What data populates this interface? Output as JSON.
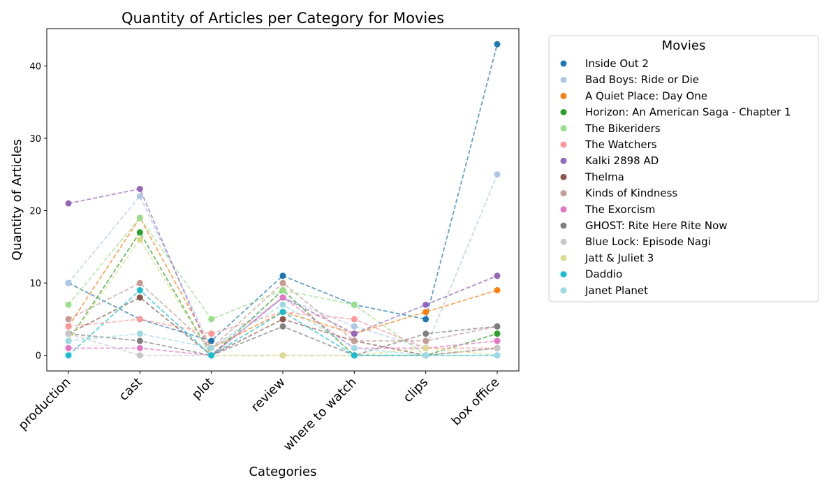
{
  "chart_data": {
    "type": "line",
    "title": "Quantity of Articles per Category for Movies",
    "xlabel": "Categories",
    "ylabel": "Quantity of Articles",
    "categories": [
      "production",
      "cast",
      "plot",
      "review",
      "where to watch",
      "clips",
      "box office"
    ],
    "ylim": [
      -2.15,
      45.15
    ],
    "yticks": [
      0,
      10,
      20,
      30,
      40
    ],
    "grid": false,
    "line_style": "dashed",
    "legend": {
      "title": "Movies",
      "placement": "outside-right"
    },
    "series": [
      {
        "name": "Inside Out 2",
        "color": "#1f77b4",
        "values": [
          10,
          5,
          2,
          11,
          7,
          5,
          43
        ]
      },
      {
        "name": "Bad Boys: Ride or Die",
        "color": "#aec7e8",
        "values": [
          10,
          22,
          1,
          8,
          4,
          1,
          25
        ]
      },
      {
        "name": "A Quiet Place: Day One",
        "color": "#ff7f0e",
        "values": [
          4,
          19,
          1,
          6,
          3,
          6,
          9
        ]
      },
      {
        "name": "Horizon: An American Saga - Chapter 1",
        "color": "#2ca02c",
        "values": [
          2,
          17,
          0,
          9,
          0,
          0,
          3
        ]
      },
      {
        "name": "The Bikeriders",
        "color": "#98df8a",
        "values": [
          7,
          19,
          5,
          9,
          7,
          0,
          1
        ]
      },
      {
        "name": "The Watchers",
        "color": "#ff9896",
        "values": [
          4,
          5,
          3,
          6,
          5,
          1,
          1
        ]
      },
      {
        "name": "Kalki 2898 AD",
        "color": "#9467bd",
        "values": [
          21,
          23,
          0,
          8,
          3,
          7,
          11
        ]
      },
      {
        "name": "Thelma",
        "color": "#8c564b",
        "values": [
          3,
          8,
          0,
          5,
          2,
          0,
          1
        ]
      },
      {
        "name": "Kinds of Kindness",
        "color": "#c49c94",
        "values": [
          5,
          10,
          1,
          10,
          2,
          2,
          4
        ]
      },
      {
        "name": "The Exorcism",
        "color": "#e377c2",
        "values": [
          1,
          1,
          0,
          8,
          1,
          1,
          2
        ]
      },
      {
        "name": "GHOST: Rite Here Rite Now",
        "color": "#7f7f7f",
        "values": [
          3,
          2,
          0,
          4,
          0,
          3,
          4
        ]
      },
      {
        "name": "Blue Lock: Episode Nagi",
        "color": "#c7c7c7",
        "values": [
          3,
          0,
          0,
          0,
          0,
          0,
          1
        ]
      },
      {
        "name": "Jatt & Juliet 3",
        "color": "#dbdb8d",
        "values": [
          2,
          16,
          0,
          0,
          0,
          1,
          0
        ]
      },
      {
        "name": "Daddio",
        "color": "#17becf",
        "values": [
          0,
          9,
          0,
          6,
          0,
          0,
          0
        ]
      },
      {
        "name": "Janet Planet",
        "color": "#9edae5",
        "values": [
          2,
          3,
          1,
          7,
          1,
          0,
          0
        ]
      }
    ]
  }
}
